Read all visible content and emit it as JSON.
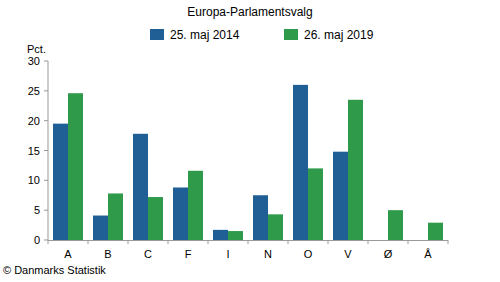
{
  "chart_data": {
    "type": "bar",
    "title": "Europa-Parlamentsvalg",
    "y_label": "Pct.",
    "source": "© Danmarks Statistik",
    "categories": [
      "A",
      "B",
      "C",
      "F",
      "I",
      "N",
      "O",
      "V",
      "Ø",
      "Å"
    ],
    "series": [
      {
        "name": "25. maj 2014",
        "color": "#1f5f96",
        "values": [
          19.5,
          4.1,
          17.8,
          8.8,
          1.7,
          7.5,
          26.0,
          14.8,
          null,
          null
        ]
      },
      {
        "name": "26. maj 2019",
        "color": "#2e9a4a",
        "values": [
          24.6,
          7.8,
          7.2,
          11.6,
          1.5,
          4.3,
          12.0,
          23.5,
          5.0,
          2.9
        ]
      }
    ],
    "ylim": [
      0,
      30
    ],
    "yticks": [
      0,
      5,
      10,
      15,
      20,
      25,
      30
    ],
    "grid": false,
    "legend": "top"
  }
}
